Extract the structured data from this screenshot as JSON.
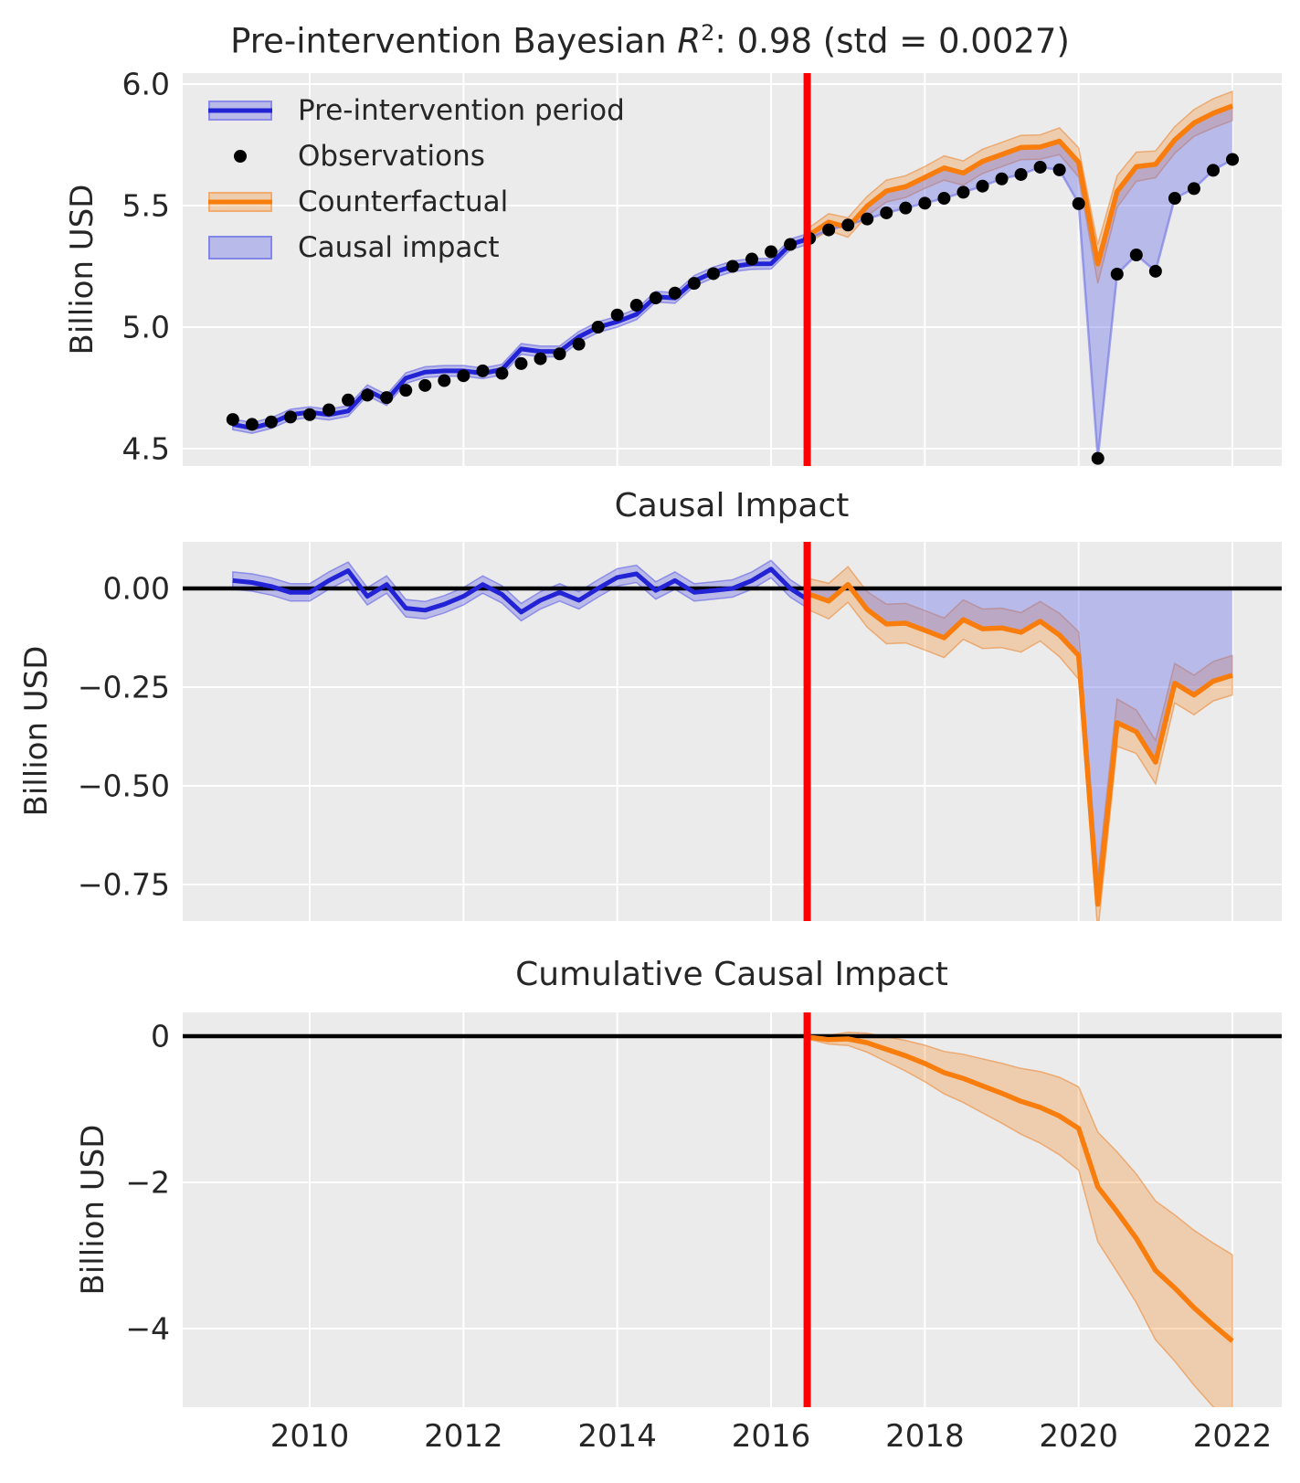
{
  "figure": {
    "panel_bg": "#ebebeb",
    "grid_color": "#ffffff",
    "text_color": "#262626"
  },
  "colors": {
    "pre_line": "#2323d6",
    "pre_band": "rgba(85,85,230,0.32)",
    "pre_band_edge": "rgba(85,85,230,0.55)",
    "observations": "#000000",
    "counterfactual_line": "#f87d0d",
    "counterfactual_band": "rgba(248,125,13,0.27)",
    "counterfactual_band_edge": "rgba(235,130,40,0.55)",
    "impact_fill": "rgba(108,112,230,0.40)",
    "impact_fill_edge": "rgba(108,112,230,0.60)",
    "event_line": "#fc0000",
    "zero_line": "#000000"
  },
  "title1": {
    "prefix": "Pre-intervention Bayesian ",
    "r_symbol": "R",
    "exponent": "2",
    "suffix": ": 0.98 (std = 0.0027)"
  },
  "title2": "Causal Impact",
  "title3": "Cumulative Causal Impact",
  "ylabel1": "Billion USD",
  "ylabel2": "Billion USD",
  "ylabel3": "Billion USD",
  "legend": [
    {
      "label": "Pre-intervention period",
      "type": "band-line-blue"
    },
    {
      "label": "Observations",
      "type": "dot"
    },
    {
      "label": "Counterfactual",
      "type": "band-line-orange"
    },
    {
      "label": "Causal impact",
      "type": "patch"
    }
  ],
  "axes": {
    "xlim": [
      2008.35,
      2022.64
    ],
    "x_ticks": [
      {
        "label": "2010",
        "value": 2010
      },
      {
        "label": "2012",
        "value": 2012
      },
      {
        "label": "2014",
        "value": 2014
      },
      {
        "label": "2016",
        "value": 2016
      },
      {
        "label": "2018",
        "value": 2018
      },
      {
        "label": "2020",
        "value": 2020
      },
      {
        "label": "2022",
        "value": 2022
      }
    ],
    "panel1_yticks": [
      {
        "label": "6.0",
        "value": 6.0
      },
      {
        "label": "5.5",
        "value": 5.5
      },
      {
        "label": "5.0",
        "value": 5.0
      },
      {
        "label": "4.5",
        "value": 4.5
      }
    ],
    "panel2_yticks": [
      {
        "label": "0.00",
        "value": 0.0
      },
      {
        "label": "−0.25",
        "value": -0.25
      },
      {
        "label": "−0.50",
        "value": -0.5
      },
      {
        "label": "−0.75",
        "value": -0.75
      }
    ],
    "panel3_yticks": [
      {
        "label": "0",
        "value": 0
      },
      {
        "label": "−2",
        "value": -2
      },
      {
        "label": "−4",
        "value": -4
      }
    ]
  },
  "chart_data": {
    "type": "line",
    "title": "Pre-intervention Bayesian R2: 0.98 (std = 0.0027)",
    "panel_titles": [
      "Causal Impact",
      "Cumulative Causal Impact"
    ],
    "ylabel": "Billion USD",
    "intervention_x": 2016.47,
    "xlim": [
      2008.35,
      2022.64
    ],
    "panel1_ylim": [
      4.43,
      6.045
    ],
    "panel2_ylim": [
      -0.843,
      0.118
    ],
    "panel3_ylim": [
      -5.075,
      0.325
    ],
    "pre_x": [
      2009.0,
      2009.25,
      2009.5,
      2009.75,
      2010.0,
      2010.25,
      2010.5,
      2010.75,
      2011.0,
      2011.25,
      2011.5,
      2011.75,
      2012.0,
      2012.25,
      2012.5,
      2012.75,
      2013.0,
      2013.25,
      2013.5,
      2013.75,
      2014.0,
      2014.25,
      2014.5,
      2014.75,
      2015.0,
      2015.25,
      2015.5,
      2015.75,
      2016.0,
      2016.25
    ],
    "observations_pre": [
      4.62,
      4.6,
      4.61,
      4.63,
      4.64,
      4.66,
      4.7,
      4.72,
      4.71,
      4.74,
      4.76,
      4.78,
      4.8,
      4.82,
      4.81,
      4.85,
      4.87,
      4.89,
      4.93,
      5.0,
      5.05,
      5.09,
      5.12,
      5.14,
      5.18,
      5.22,
      5.25,
      5.28,
      5.31,
      5.34
    ],
    "pre_fit": [
      4.6,
      4.585,
      4.605,
      4.64,
      4.65,
      4.64,
      4.655,
      4.74,
      4.7,
      4.79,
      4.815,
      4.82,
      4.82,
      4.81,
      4.825,
      4.91,
      4.9,
      4.9,
      4.96,
      5.0,
      5.022,
      5.053,
      5.125,
      5.12,
      5.19,
      5.225,
      5.25,
      5.26,
      5.261,
      5.34
    ],
    "pre_fit_end": {
      "x": 2016.45,
      "y": 5.36
    },
    "pre_fit_band_halfwidth": 0.022,
    "post_x": [
      2016.5,
      2016.75,
      2017.0,
      2017.25,
      2017.5,
      2017.75,
      2018.0,
      2018.25,
      2018.5,
      2018.75,
      2019.0,
      2019.25,
      2019.5,
      2019.75,
      2020.0,
      2020.25,
      2020.5,
      2020.75,
      2021.0,
      2021.25,
      2021.5,
      2021.75,
      2022.0
    ],
    "observations_post": [
      5.365,
      5.4,
      5.42,
      5.445,
      5.47,
      5.49,
      5.51,
      5.53,
      5.555,
      5.58,
      5.61,
      5.628,
      5.658,
      5.647,
      5.508,
      4.46,
      5.218,
      5.297,
      5.23,
      5.53,
      5.57,
      5.645,
      5.69
    ],
    "counterfactual": [
      5.38,
      5.432,
      5.41,
      5.498,
      5.56,
      5.578,
      5.616,
      5.655,
      5.634,
      5.682,
      5.71,
      5.739,
      5.741,
      5.765,
      5.678,
      5.26,
      5.558,
      5.66,
      5.67,
      5.77,
      5.84,
      5.88,
      5.91
    ],
    "counterfactual_band_halfwidth": [
      0.03,
      0.035,
      0.04,
      0.04,
      0.045,
      0.045,
      0.045,
      0.05,
      0.05,
      0.05,
      0.05,
      0.05,
      0.05,
      0.055,
      0.06,
      0.08,
      0.065,
      0.06,
      0.055,
      0.055,
      0.055,
      0.06,
      0.06
    ],
    "impact_pre": [
      0.02,
      0.015,
      0.005,
      -0.01,
      -0.01,
      0.02,
      0.045,
      -0.02,
      0.01,
      -0.05,
      -0.055,
      -0.04,
      -0.02,
      0.01,
      -0.015,
      -0.06,
      -0.03,
      -0.01,
      -0.03,
      0.0,
      0.028,
      0.037,
      -0.005,
      0.02,
      -0.01,
      -0.005,
      0.0,
      0.02,
      0.049,
      0.0
    ],
    "impact_pre_end": {
      "x": 2016.45,
      "y": -0.025
    },
    "impact_pre_band_halfwidth": 0.022,
    "impact_post": [
      -0.015,
      -0.032,
      0.01,
      -0.053,
      -0.09,
      -0.088,
      -0.106,
      -0.125,
      -0.079,
      -0.102,
      -0.1,
      -0.111,
      -0.083,
      -0.118,
      -0.17,
      -0.8,
      -0.34,
      -0.363,
      -0.44,
      -0.24,
      -0.27,
      -0.235,
      -0.22
    ],
    "impact_post_band_halfwidth": [
      0.04,
      0.045,
      0.045,
      0.045,
      0.05,
      0.05,
      0.05,
      0.05,
      0.05,
      0.05,
      0.05,
      0.05,
      0.05,
      0.055,
      0.06,
      0.07,
      0.06,
      0.055,
      0.055,
      0.05,
      0.05,
      0.05,
      0.05
    ],
    "cumulative_impact": [
      -0.015,
      -0.047,
      -0.037,
      -0.09,
      -0.18,
      -0.268,
      -0.374,
      -0.499,
      -0.578,
      -0.68,
      -0.78,
      -0.891,
      -0.974,
      -1.092,
      -1.262,
      -2.062,
      -2.402,
      -2.765,
      -3.205,
      -3.445,
      -3.715,
      -3.95,
      -4.17
    ],
    "cumulative_band_halfwidth": [
      0.03,
      0.06,
      0.09,
      0.13,
      0.17,
      0.21,
      0.25,
      0.29,
      0.33,
      0.37,
      0.41,
      0.45,
      0.49,
      0.53,
      0.57,
      0.75,
      0.82,
      0.88,
      0.95,
      1.0,
      1.06,
      1.12,
      1.18
    ]
  }
}
